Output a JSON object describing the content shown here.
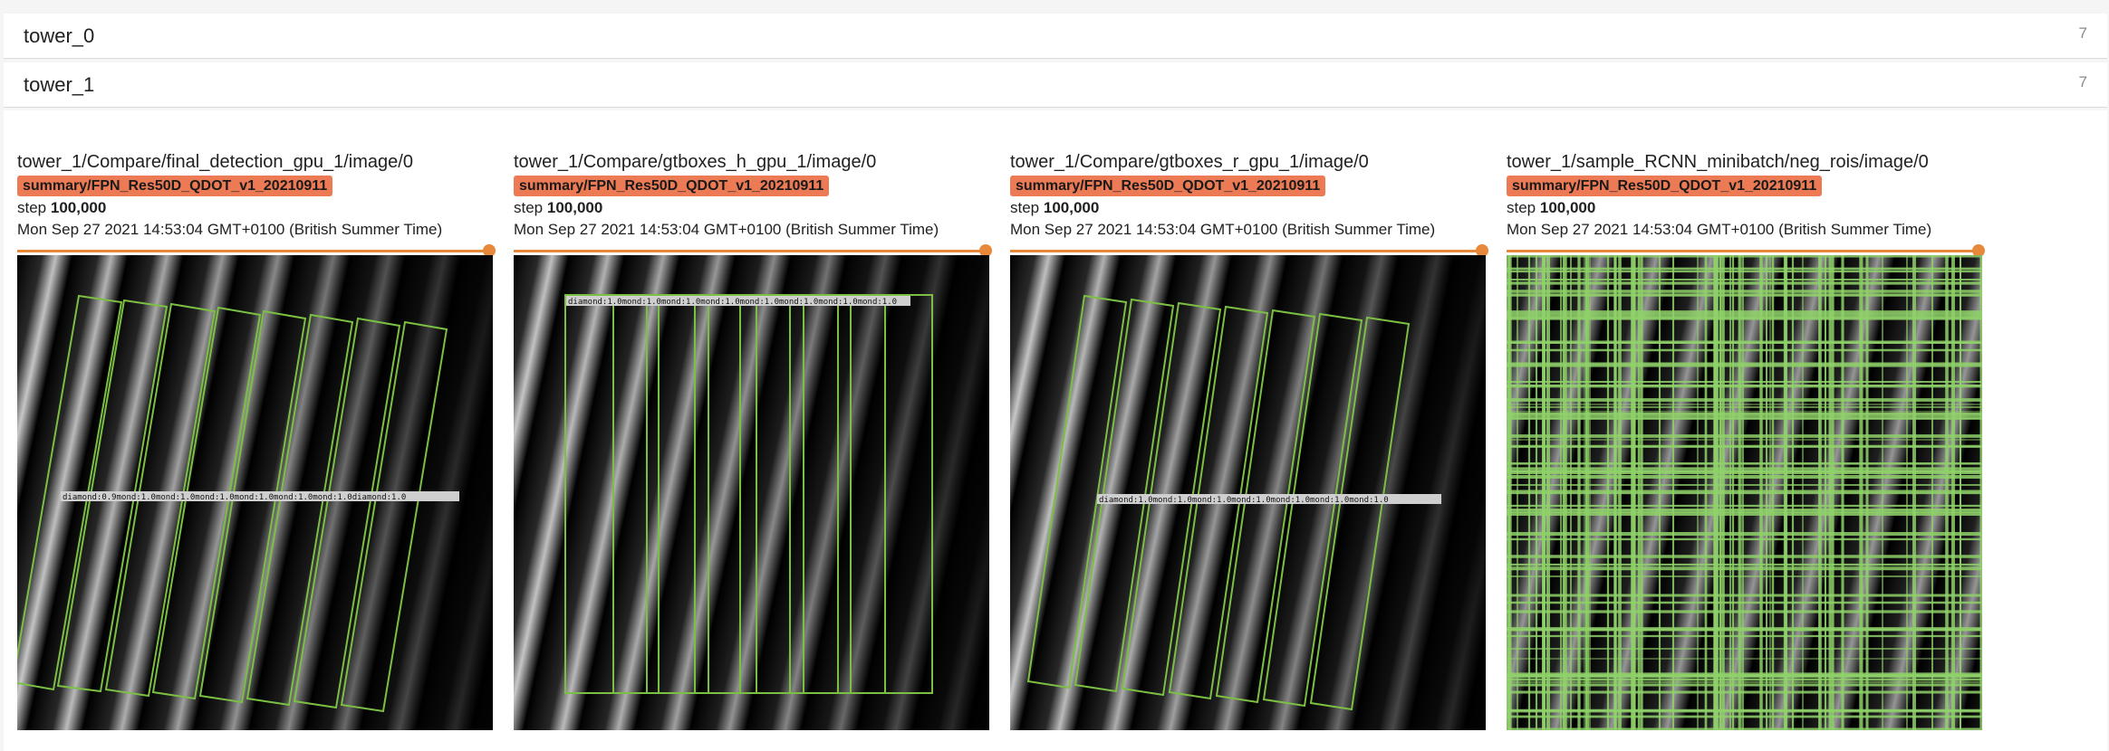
{
  "groups": [
    {
      "name": "tower_0",
      "count": "7"
    },
    {
      "name": "tower_1",
      "count": "7"
    }
  ],
  "cards": [
    {
      "title": "tower_1/Compare/final_detection_gpu_1/image/0",
      "run": "summary/FPN_Res50D_QDOT_v1_20210911",
      "step_label": "step",
      "step_value": "100,000",
      "date": "Mon Sep 27 2021 14:53:04 GMT+0100 (British Summer Time)",
      "slider_value": 1.0
    },
    {
      "title": "tower_1/Compare/gtboxes_h_gpu_1/image/0",
      "run": "summary/FPN_Res50D_QDOT_v1_20210911",
      "step_label": "step",
      "step_value": "100,000",
      "date": "Mon Sep 27 2021 14:53:04 GMT+0100 (British Summer Time)",
      "slider_value": 1.0
    },
    {
      "title": "tower_1/Compare/gtboxes_r_gpu_1/image/0",
      "run": "summary/FPN_Res50D_QDOT_v1_20210911",
      "step_label": "step",
      "step_value": "100,000",
      "date": "Mon Sep 27 2021 14:53:04 GMT+0100 (British Summer Time)",
      "slider_value": 1.0
    },
    {
      "title": "tower_1/sample_RCNN_minibatch/neg_rois/image/0",
      "run": "summary/FPN_Res50D_QDOT_v1_20210911",
      "step_label": "step",
      "step_value": "100,000",
      "date": "Mon Sep 27 2021 14:53:04 GMT+0100 (British Summer Time)",
      "slider_value": 1.0
    }
  ],
  "colors": {
    "run_badge": "#ec7a55",
    "slider": "#e8883a",
    "box_outline": "#7bc043"
  }
}
